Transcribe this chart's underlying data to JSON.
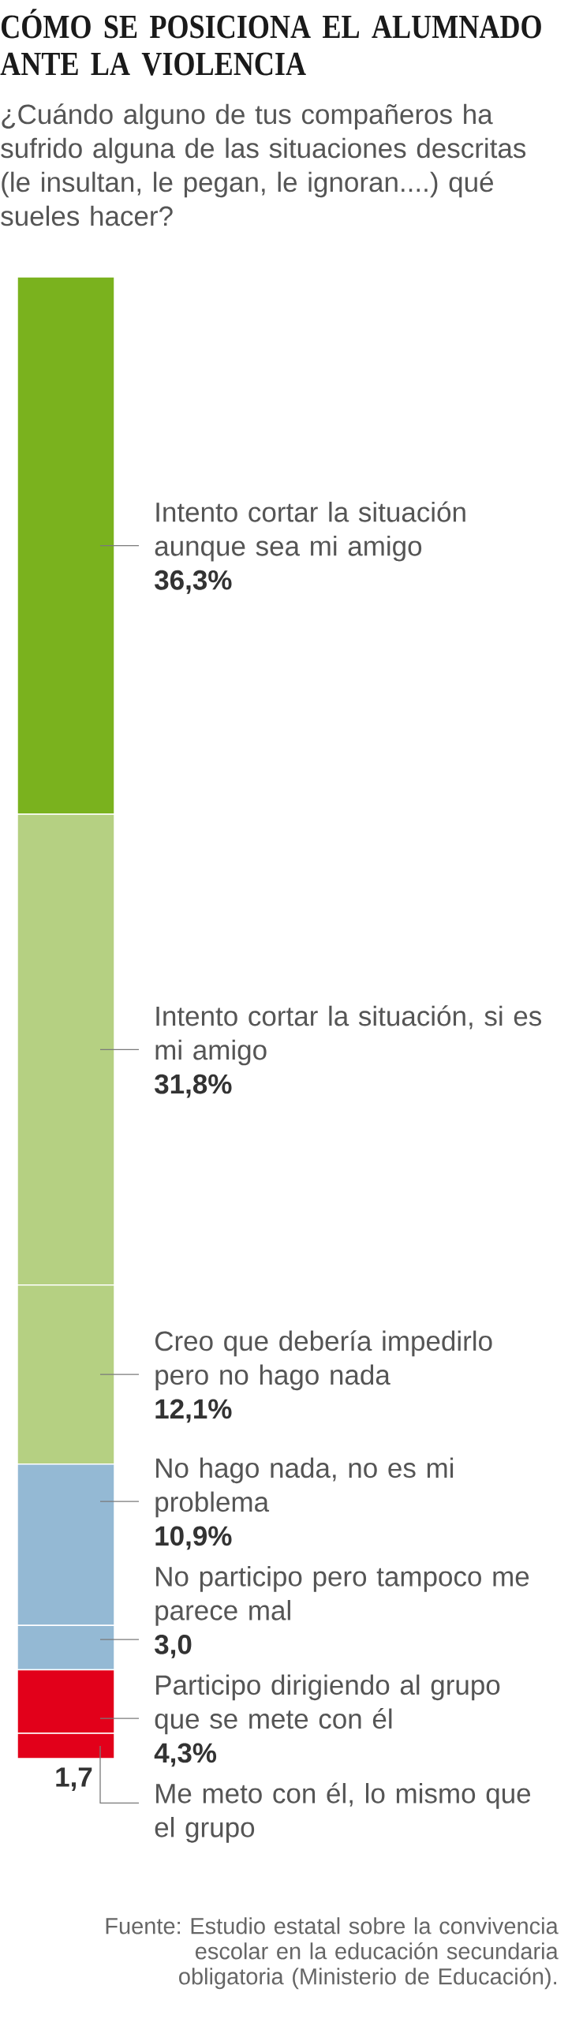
{
  "chart_data": {
    "type": "bar",
    "stacked": true,
    "title": "CÓMO SE POSICIONA EL ALUMNADO ANTE LA VIOLENCIA",
    "subtitle": "¿Cuándo alguno de tus compañeros ha sufrido alguna de las situaciones descritas (le insultan, le pegan, le ignoran....) qué sueles hacer?",
    "categories": [
      null
    ],
    "series": [
      {
        "name": "Me meto con él, lo mismo que el grupo",
        "color": "#e2001a",
        "values": [
          1.7
        ],
        "value_labels": [
          "1,7"
        ]
      },
      {
        "name": "Participo dirigiendo al grupo que se mete con él",
        "color": "#e2001a",
        "values": [
          4.3
        ],
        "value_labels": [
          "4,3%"
        ]
      },
      {
        "name": "No participo pero tampoco me parece mal",
        "color": "#94b9d4",
        "values": [
          3.0
        ],
        "value_labels": [
          "3,0"
        ]
      },
      {
        "name": "No hago nada, no es mi problema",
        "color": "#94b9d4",
        "values": [
          10.9
        ],
        "value_labels": [
          "10,9%"
        ]
      },
      {
        "name": "Creo que debería impedirlo pero no hago nada",
        "color": "#b5d082",
        "values": [
          12.1
        ],
        "value_labels": [
          "12,1%"
        ]
      },
      {
        "name": "Intento cortar la situación, si es mi amigo",
        "color": "#b5d082",
        "values": [
          31.8
        ],
        "value_labels": [
          "31,8%"
        ]
      },
      {
        "name": "Intento cortar la situación aunque sea mi amigo",
        "color": "#7ab21e",
        "values": [
          36.3
        ],
        "value_labels": [
          "36,3%"
        ]
      }
    ],
    "annotations": [
      "Fuente: Estudio estatal sobre la convivencia escolar en la educación secundaria obligatoria (Ministerio de Educación)."
    ]
  }
}
